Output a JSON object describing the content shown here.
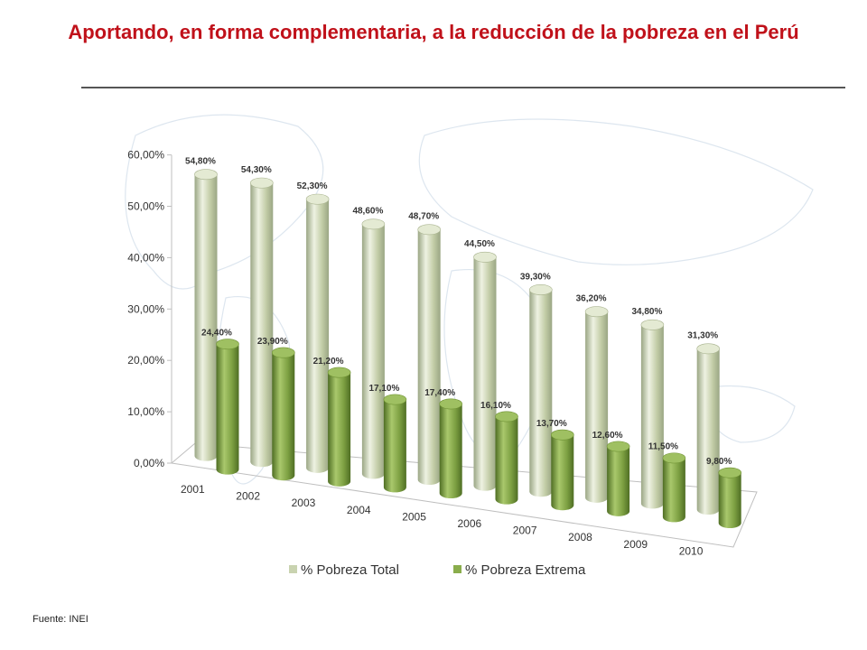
{
  "header": {
    "title": "Aportando, en forma complementaria, a la reducción de la pobreza en el Perú"
  },
  "footer": {
    "source": "Fuente: INEI"
  },
  "colors": {
    "title": "#c0111a",
    "series_total": "#c9d3b0",
    "series_extreme": "#8aad4c",
    "grid": "#d9d9d9"
  },
  "chart_data": {
    "type": "bar",
    "variant": "3d-cylinder",
    "categories": [
      "2001",
      "2002",
      "2003",
      "2004",
      "2005",
      "2006",
      "2007",
      "2008",
      "2009",
      "2010"
    ],
    "series": [
      {
        "name": "% Pobreza Total",
        "values": [
          54.8,
          54.3,
          52.3,
          48.6,
          48.7,
          44.5,
          39.3,
          36.2,
          34.8,
          31.3
        ],
        "labels": [
          "54,80%",
          "54,30%",
          "52,30%",
          "48,60%",
          "48,70%",
          "44,50%",
          "39,30%",
          "36,20%",
          "34,80%",
          "31,30%"
        ]
      },
      {
        "name": "% Pobreza Extrema",
        "values": [
          24.4,
          23.9,
          21.2,
          17.1,
          17.4,
          16.1,
          13.7,
          12.6,
          11.5,
          9.8
        ],
        "labels": [
          "24,40%",
          "23,90%",
          "21,20%",
          "17,10%",
          "17,40%",
          "16,10%",
          "13,70%",
          "12,60%",
          "11,50%",
          "9,80%"
        ]
      }
    ],
    "y_ticks": [
      "0,00%",
      "10,00%",
      "20,00%",
      "30,00%",
      "40,00%",
      "50,00%",
      "60,00%"
    ],
    "ylim": [
      0,
      60
    ],
    "grid": false,
    "legend_position": "bottom"
  }
}
